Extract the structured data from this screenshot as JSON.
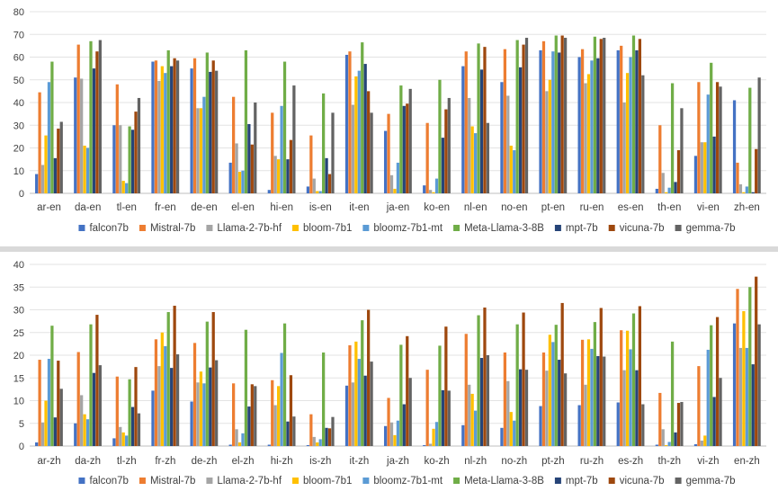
{
  "chart_data": [
    {
      "type": "bar",
      "title": "",
      "xlabel": "",
      "ylabel": "",
      "ylim": [
        0,
        80
      ],
      "yticks": [
        0,
        10,
        20,
        30,
        40,
        50,
        60,
        70,
        80
      ],
      "grid": true,
      "legend_position": "bottom",
      "categories": [
        "ar-en",
        "da-en",
        "tl-en",
        "fr-en",
        "de-en",
        "el-en",
        "hi-en",
        "is-en",
        "it-en",
        "ja-en",
        "ko-en",
        "nl-en",
        "no-en",
        "pt-en",
        "ru-en",
        "es-en",
        "th-en",
        "vi-en",
        "zh-en"
      ],
      "series": [
        {
          "name": "falcon7b",
          "color": "#4472c4",
          "values": [
            8.5,
            51,
            30,
            58,
            55,
            13.5,
            1.5,
            3,
            61,
            27.5,
            3.5,
            56,
            49,
            63,
            60,
            63,
            2,
            16.5,
            41
          ]
        },
        {
          "name": "Mistral-7b",
          "color": "#ed7d31",
          "values": [
            44.5,
            65.5,
            48,
            58.5,
            59.5,
            42.5,
            35.5,
            25.5,
            62.5,
            35,
            31,
            62.5,
            63.5,
            67,
            63.5,
            65,
            30,
            49,
            13.5
          ]
        },
        {
          "name": "Llama-2-7b-hf",
          "color": "#a5a5a5",
          "values": [
            12.5,
            50.5,
            30,
            49.5,
            37.5,
            22,
            16.5,
            6.5,
            39,
            8,
            1.5,
            42,
            43,
            45,
            48.5,
            40,
            9,
            22.5,
            4
          ]
        },
        {
          "name": "bloom-7b1",
          "color": "#ffc000",
          "values": [
            25.5,
            21,
            5.5,
            56,
            37.5,
            9.5,
            15,
            1,
            51.5,
            2,
            0.5,
            29.5,
            21,
            50,
            52.5,
            53,
            0.5,
            22.5,
            0.5
          ]
        },
        {
          "name": "bloomz-7b1-mt",
          "color": "#5b9bd5",
          "values": [
            49,
            20,
            4.5,
            53,
            42.5,
            10,
            38.5,
            1,
            54,
            13.5,
            6.5,
            26.5,
            19,
            62.5,
            58.5,
            60,
            2.5,
            43.5,
            3
          ]
        },
        {
          "name": "Meta-Llama-3-8B",
          "color": "#70ad47",
          "values": [
            58,
            67,
            29.5,
            63,
            62,
            63,
            58,
            44,
            66.5,
            47.5,
            50,
            66,
            67.5,
            69.5,
            69,
            69.5,
            48.5,
            57.5,
            46.5
          ]
        },
        {
          "name": "mpt-7b",
          "color": "#264478",
          "values": [
            15.5,
            55,
            28,
            56,
            53.5,
            30.5,
            15,
            15.5,
            57,
            38.5,
            24.5,
            54.5,
            55.5,
            62,
            59.5,
            63,
            5,
            25,
            0.5
          ]
        },
        {
          "name": "vicuna-7b",
          "color": "#9e480e",
          "values": [
            28.5,
            62.5,
            36,
            59.5,
            58.5,
            21.5,
            23.5,
            8.5,
            45,
            39.5,
            37,
            64.5,
            65.5,
            69.5,
            68,
            68,
            19,
            49,
            19.5
          ]
        },
        {
          "name": "gemma-7b",
          "color": "#636363",
          "values": [
            31.5,
            67.5,
            42,
            58.5,
            54,
            40,
            47.5,
            35.5,
            35.5,
            46,
            42,
            31,
            68.5,
            68.5,
            68.5,
            52,
            37.5,
            47,
            51
          ]
        }
      ]
    },
    {
      "type": "bar",
      "title": "",
      "xlabel": "",
      "ylabel": "",
      "ylim": [
        0,
        40
      ],
      "yticks": [
        0,
        5,
        10,
        15,
        20,
        25,
        30,
        35,
        40
      ],
      "grid": true,
      "legend_position": "bottom",
      "categories": [
        "ar-zh",
        "da-zh",
        "tl-zh",
        "fr-zh",
        "de-zh",
        "el-zh",
        "hi-zh",
        "is-zh",
        "it-zh",
        "ja-zh",
        "ko-zh",
        "nl-zh",
        "no-zh",
        "pt-zh",
        "ru-zh",
        "es-zh",
        "th-zh",
        "vi-zh",
        "en-zh"
      ],
      "series": [
        {
          "name": "falcon7b",
          "color": "#4472c4",
          "values": [
            0.8,
            5,
            1.7,
            12.2,
            9.8,
            0.3,
            0.3,
            0.2,
            13.3,
            4.4,
            0.2,
            4.6,
            4,
            8.8,
            9,
            9.6,
            0.3,
            0.4,
            27
          ]
        },
        {
          "name": "Mistral-7b",
          "color": "#ed7d31",
          "values": [
            19,
            20.7,
            15.3,
            23.5,
            22.7,
            13.8,
            14.5,
            7,
            22.2,
            10.6,
            16.8,
            24.7,
            20.6,
            20.6,
            23.4,
            25.5,
            11.7,
            17.6,
            34.6
          ]
        },
        {
          "name": "Llama-2-7b-hf",
          "color": "#a5a5a5",
          "values": [
            5.2,
            11.2,
            4.2,
            17.6,
            14,
            3.7,
            9,
            2,
            14,
            5.2,
            0.5,
            13.5,
            14.3,
            16.6,
            13.5,
            16.7,
            3.7,
            1.2,
            21.6
          ]
        },
        {
          "name": "bloom-7b1",
          "color": "#ffc000",
          "values": [
            10,
            7,
            3,
            25,
            16.4,
            0.8,
            13.2,
            0.8,
            23,
            2.4,
            3.8,
            11.5,
            7.5,
            24.5,
            23.5,
            25.4,
            0.2,
            2.3,
            29.7
          ]
        },
        {
          "name": "bloomz-7b1-mt",
          "color": "#5b9bd5",
          "values": [
            19.2,
            5.9,
            2.3,
            22,
            13.8,
            2.8,
            20.5,
            1.5,
            19.2,
            5.6,
            5.3,
            7.8,
            5.6,
            22.9,
            21.4,
            21.3,
            0.9,
            21.2,
            21.6
          ]
        },
        {
          "name": "Meta-Llama-3-8B",
          "color": "#70ad47",
          "values": [
            26.5,
            26.8,
            14.7,
            29.5,
            27.4,
            25.6,
            27,
            20.6,
            27.7,
            22.3,
            22.1,
            28.8,
            26.8,
            26.7,
            27.3,
            29.2,
            23,
            26.6,
            35
          ]
        },
        {
          "name": "mpt-7b",
          "color": "#264478",
          "values": [
            6.3,
            16.1,
            8.6,
            17.2,
            17.3,
            8.7,
            5.4,
            4,
            15.5,
            9.2,
            12.3,
            19.4,
            16.9,
            19,
            19.8,
            16.7,
            3,
            10.8,
            18
          ]
        },
        {
          "name": "vicuna-7b",
          "color": "#9e480e",
          "values": [
            18.8,
            28.9,
            17.4,
            30.9,
            29.5,
            13.6,
            15.6,
            3.9,
            30,
            24.2,
            26.3,
            30.5,
            29.4,
            31.5,
            30.4,
            30.8,
            9.5,
            28.4,
            37.3
          ]
        },
        {
          "name": "gemma-7b",
          "color": "#636363",
          "values": [
            12.6,
            17.8,
            7.2,
            20.2,
            18.9,
            13.2,
            6.5,
            6.4,
            18.6,
            15,
            12.2,
            20,
            16.8,
            16,
            19.7,
            9.2,
            9.7,
            15,
            26.8
          ]
        }
      ]
    }
  ]
}
